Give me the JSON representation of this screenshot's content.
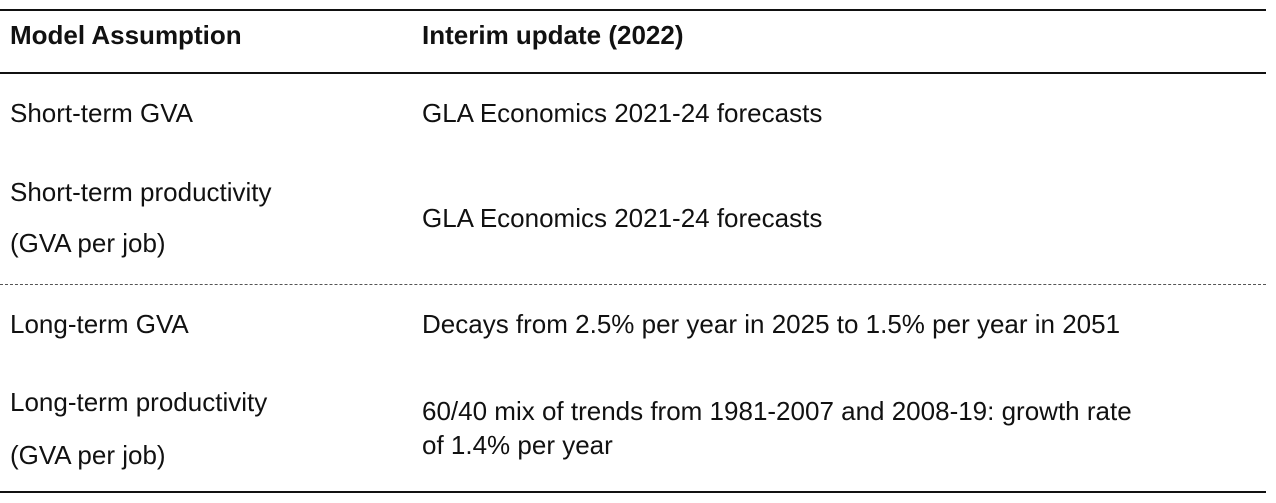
{
  "table": {
    "header": [
      "Model Assumption",
      "Interim update (2022)"
    ],
    "rows": [
      [
        "Short-term GVA",
        "GLA Economics 2021-24 forecasts"
      ],
      [
        [
          "Short-term productivity",
          "(GVA per job)"
        ],
        "GLA Economics 2021-24 forecasts"
      ],
      [
        "Long-term GVA",
        "Decays from 2.5% per year in 2025 to 1.5% per year in 2051"
      ],
      [
        [
          "Long-term productivity",
          "(GVA per job)"
        ],
        [
          "60/40 mix of trends from 1981-2007 and 2008-19: growth rate",
          "of 1.4% per year"
        ]
      ]
    ]
  }
}
